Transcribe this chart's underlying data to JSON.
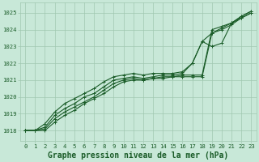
{
  "title": "Graphe pression niveau de la mer (hPa)",
  "xlabel_ticks": [
    0,
    1,
    2,
    3,
    4,
    5,
    6,
    7,
    8,
    9,
    10,
    11,
    12,
    13,
    14,
    15,
    16,
    17,
    18,
    19,
    20,
    21,
    22,
    23
  ],
  "ylim": [
    1017.4,
    1025.6
  ],
  "xlim": [
    -0.5,
    23.5
  ],
  "yticks": [
    1018,
    1019,
    1020,
    1021,
    1022,
    1023,
    1024,
    1025
  ],
  "bg_color": "#c8e8d8",
  "grid_color": "#a0c8b0",
  "line_color": "#1a5c28",
  "series": [
    [
      1018.0,
      1018.0,
      1018.0,
      1018.5,
      1018.9,
      1019.2,
      1019.6,
      1019.9,
      1020.2,
      1020.6,
      1020.9,
      1021.0,
      1021.0,
      1021.1,
      1021.1,
      1021.2,
      1021.2,
      1021.2,
      1021.2,
      1023.8,
      1024.0,
      1024.3,
      1024.7,
      1025.0
    ],
    [
      1018.0,
      1018.0,
      1018.1,
      1018.7,
      1019.1,
      1019.4,
      1019.7,
      1020.0,
      1020.4,
      1020.8,
      1021.0,
      1021.1,
      1021.0,
      1021.1,
      1021.2,
      1021.2,
      1021.3,
      1021.3,
      1021.3,
      1024.0,
      1024.2,
      1024.4,
      1024.7,
      1025.0
    ],
    [
      1018.0,
      1018.0,
      1018.2,
      1018.9,
      1019.3,
      1019.6,
      1020.0,
      1020.2,
      1020.6,
      1021.0,
      1021.1,
      1021.2,
      1021.1,
      1021.2,
      1021.3,
      1021.3,
      1021.4,
      1022.0,
      1023.3,
      1023.8,
      1024.1,
      1024.4,
      1024.8,
      1025.1
    ],
    [
      1018.0,
      1018.0,
      1018.4,
      1019.1,
      1019.6,
      1019.9,
      1020.2,
      1020.5,
      1020.9,
      1021.2,
      1021.3,
      1021.4,
      1021.3,
      1021.4,
      1021.4,
      1021.4,
      1021.5,
      1022.0,
      1023.3,
      1023.0,
      1023.2,
      1024.4,
      1024.8,
      1025.1
    ]
  ],
  "marker": "+",
  "marker_size": 3.5,
  "line_width": 0.8,
  "font_color": "#1a5c28",
  "title_fontsize": 7.0,
  "tick_fontsize": 5.2
}
